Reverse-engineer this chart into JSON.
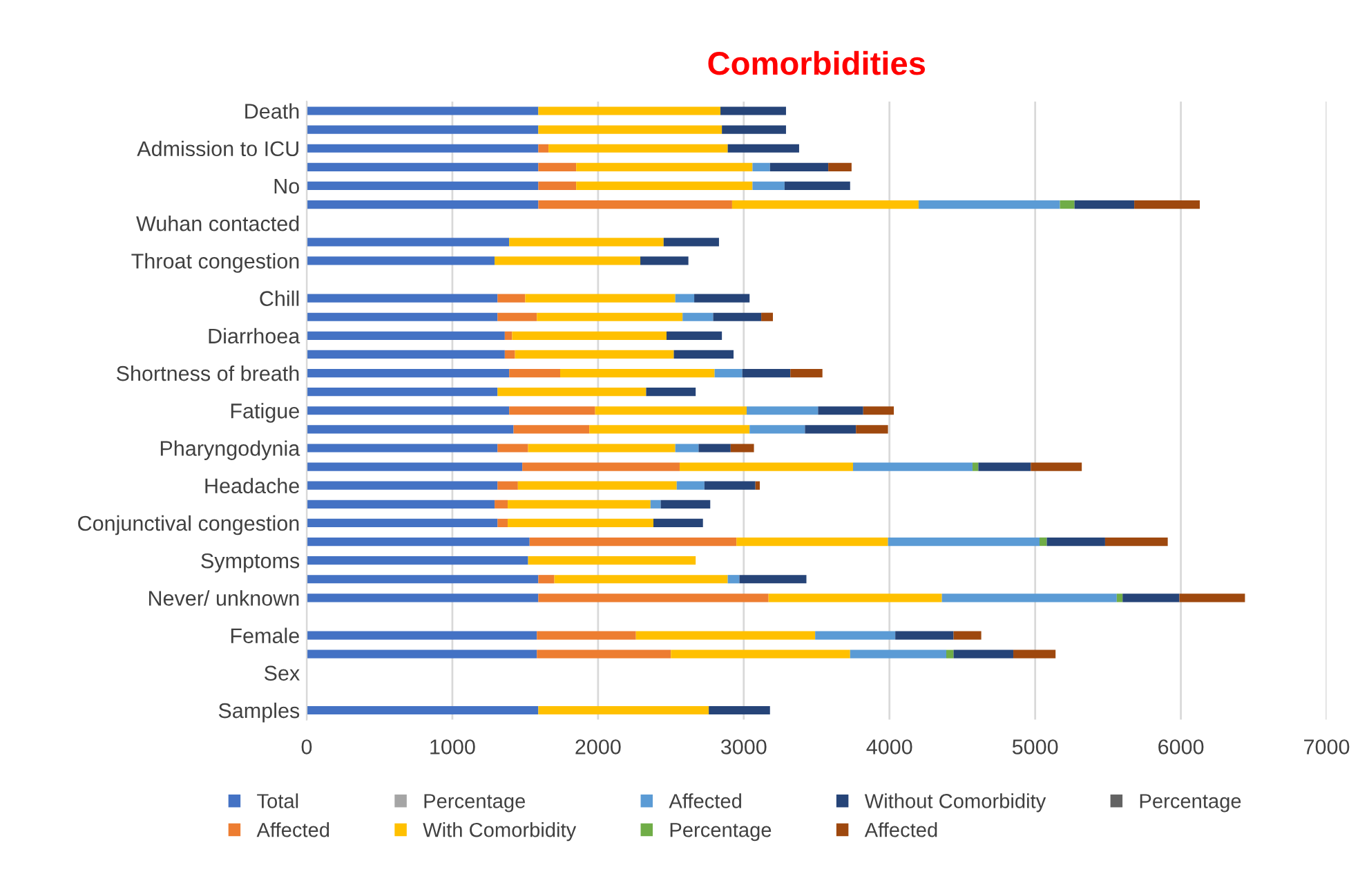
{
  "chart_data": {
    "type": "bar",
    "orientation": "horizontal",
    "stacked": true,
    "title": "Comorbidities",
    "categories": [
      "Death",
      null,
      "Admission to ICU",
      null,
      "No",
      null,
      "Wuhan contacted",
      null,
      "Throat congestion",
      null,
      "Chill",
      null,
      "Diarrhoea",
      null,
      "Shortness of breath",
      null,
      "Fatigue",
      null,
      "Pharyngodynia",
      null,
      "Headache",
      null,
      "Conjunctival congestion",
      null,
      "Symptoms",
      null,
      "Never/ unknown",
      null,
      "Female",
      null,
      "Sex",
      null,
      "Samples"
    ],
    "series": [
      {
        "name": "Total",
        "color": "#4472c4",
        "values": [
          1590,
          1590,
          1590,
          1590,
          1590,
          1590,
          null,
          1390,
          1290,
          null,
          1310,
          1310,
          1360,
          1360,
          1390,
          1310,
          1390,
          1420,
          1310,
          1480,
          1310,
          1290,
          1310,
          1530,
          1520,
          1590,
          1590,
          null,
          1580,
          1580,
          null,
          null,
          1590
        ]
      },
      {
        "name": "Affected",
        "color": "#ed7d31",
        "values": [
          null,
          null,
          70,
          260,
          260,
          1330,
          null,
          null,
          null,
          null,
          190,
          270,
          50,
          70,
          350,
          null,
          590,
          520,
          210,
          1080,
          140,
          90,
          70,
          1420,
          null,
          110,
          1580,
          null,
          680,
          920,
          null,
          null,
          null
        ]
      },
      {
        "name": "Percentage",
        "color": "#a5a5a5",
        "values": [
          null,
          null,
          null,
          null,
          null,
          null,
          null,
          null,
          null,
          null,
          null,
          null,
          null,
          null,
          null,
          null,
          null,
          null,
          null,
          null,
          null,
          null,
          null,
          null,
          null,
          null,
          null,
          null,
          null,
          null,
          null,
          null,
          null
        ]
      },
      {
        "name": "With Comorbidity",
        "color": "#ffc000",
        "values": [
          1250,
          1260,
          1230,
          1210,
          1210,
          1280,
          null,
          1060,
          1000,
          null,
          1030,
          1000,
          1060,
          1090,
          1060,
          1020,
          1040,
          1100,
          1010,
          1190,
          1090,
          980,
          1000,
          1040,
          1150,
          1190,
          1190,
          null,
          1230,
          1230,
          null,
          null,
          1170
        ]
      },
      {
        "name": "Affected",
        "color": "#5b9bd5",
        "values": [
          null,
          null,
          null,
          120,
          220,
          970,
          null,
          null,
          null,
          null,
          130,
          210,
          null,
          null,
          190,
          null,
          490,
          380,
          160,
          820,
          190,
          70,
          null,
          1040,
          null,
          80,
          1200,
          null,
          550,
          660,
          null,
          null,
          null
        ]
      },
      {
        "name": "Percentage",
        "color": "#70ad47",
        "values": [
          null,
          null,
          null,
          null,
          null,
          100,
          null,
          null,
          null,
          null,
          null,
          null,
          null,
          null,
          null,
          null,
          null,
          null,
          null,
          40,
          null,
          null,
          null,
          50,
          null,
          null,
          40,
          null,
          null,
          50,
          null,
          null,
          null
        ]
      },
      {
        "name": "Without Comorbidity",
        "color": "#264478",
        "values": [
          450,
          440,
          490,
          400,
          450,
          410,
          null,
          380,
          330,
          null,
          380,
          330,
          380,
          410,
          330,
          340,
          310,
          350,
          220,
          360,
          350,
          340,
          340,
          400,
          null,
          460,
          390,
          null,
          400,
          410,
          null,
          null,
          420
        ]
      },
      {
        "name": "Affected",
        "color": "#9e480e",
        "values": [
          null,
          null,
          null,
          160,
          null,
          450,
          null,
          null,
          null,
          null,
          null,
          80,
          null,
          null,
          220,
          null,
          210,
          220,
          160,
          350,
          30,
          null,
          null,
          430,
          null,
          null,
          450,
          null,
          190,
          290,
          null,
          null,
          null
        ]
      },
      {
        "name": "Percentage",
        "color": "#636363",
        "values": [
          null,
          null,
          null,
          null,
          null,
          null,
          null,
          null,
          null,
          null,
          null,
          null,
          null,
          null,
          null,
          null,
          null,
          null,
          null,
          null,
          null,
          null,
          null,
          null,
          null,
          null,
          null,
          null,
          null,
          null,
          null,
          null,
          null
        ]
      }
    ],
    "xlim": [
      0,
      7000
    ],
    "xticks": [
      0,
      1000,
      2000,
      3000,
      4000,
      5000,
      6000,
      7000
    ],
    "grid": "x",
    "legend": "bottom"
  }
}
